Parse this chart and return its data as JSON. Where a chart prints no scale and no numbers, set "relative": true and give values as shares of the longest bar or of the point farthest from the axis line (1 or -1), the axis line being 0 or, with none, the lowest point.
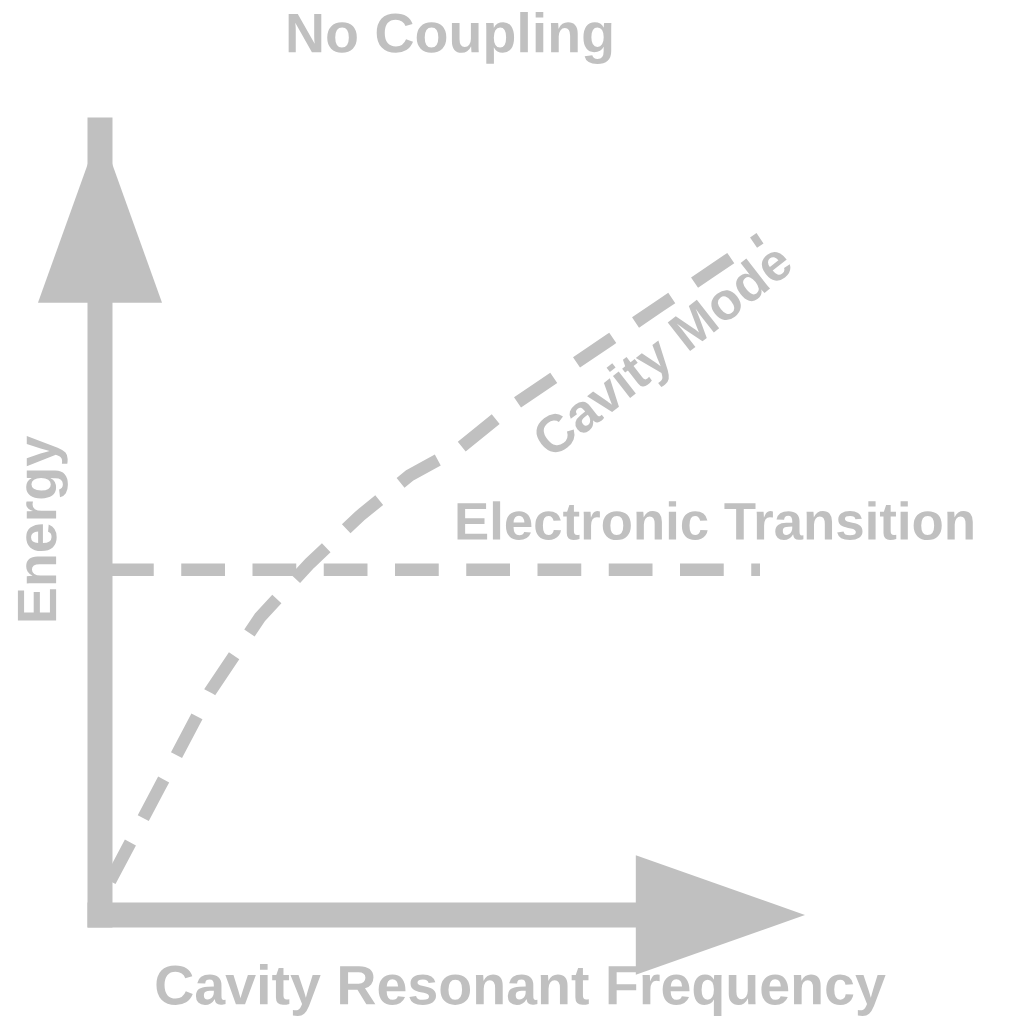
{
  "chart_data": {
    "type": "line",
    "title": "No Coupling",
    "xlabel": "Cavity Resonant Frequency",
    "ylabel": "Energy",
    "relative": true,
    "categories": [
      null,
      null,
      null,
      null,
      null,
      null,
      null,
      null,
      null,
      null,
      null,
      null,
      null,
      null
    ],
    "series": [
      {
        "name": "Cavity Mode",
        "color": "#c0c0c0",
        "values": [
          0.05,
          0.19,
          0.33,
          0.44,
          0.52,
          0.59,
          0.65,
          0.69,
          0.75,
          0.8,
          0.85,
          0.9,
          0.95,
          1.0
        ]
      },
      {
        "name": "Electronic Transition",
        "color": "#c0c0c0",
        "values": [
          0.51,
          0.51,
          0.51,
          0.51,
          0.51,
          0.51,
          0.51,
          0.51,
          0.51,
          0.51,
          0.51,
          0.51,
          0.51,
          0.51
        ]
      }
    ],
    "legend": false,
    "line_style": "dashed",
    "marker": "none"
  }
}
